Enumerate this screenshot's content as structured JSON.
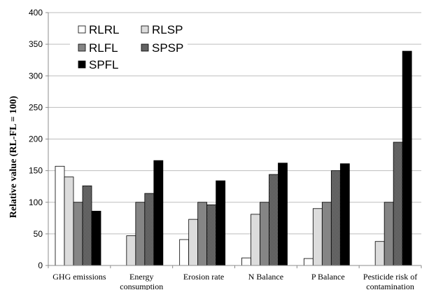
{
  "chart_data": {
    "type": "bar",
    "title": "",
    "xlabel": "",
    "ylabel": "Relative value (RL-FL = 100)",
    "ylim": [
      0,
      400
    ],
    "yticks": [
      0,
      50,
      100,
      150,
      200,
      250,
      300,
      350,
      400
    ],
    "ytick_labels": [
      "0",
      "50",
      "100",
      "150",
      "200",
      "250",
      "300",
      "350",
      "400"
    ],
    "grid": true,
    "legend_position": "top-left",
    "categories": [
      [
        "GHG emissions"
      ],
      [
        "Energy",
        "consumption"
      ],
      [
        "Erosion rate"
      ],
      [
        "N Balance"
      ],
      [
        "P Balance"
      ],
      [
        "Pesticide risk of",
        "contamination"
      ]
    ],
    "series": [
      {
        "name": "RLRL",
        "values": [
          157,
          null,
          41,
          12,
          11,
          null
        ],
        "color": "#ffffff",
        "pattern": "none"
      },
      {
        "name": "RLSP",
        "values": [
          140,
          47,
          73,
          81,
          90,
          38
        ],
        "color": "#dcdcdc",
        "pattern": "none"
      },
      {
        "name": "RLFL",
        "values": [
          100,
          100,
          100,
          100,
          100,
          100
        ],
        "color": "#858585",
        "pattern": "none"
      },
      {
        "name": "SPSP",
        "values": [
          126,
          114,
          96,
          144,
          150,
          195
        ],
        "color": "#505050",
        "pattern": "checker"
      },
      {
        "name": "SPFL",
        "values": [
          86,
          166,
          134,
          162,
          161,
          339
        ],
        "color": "#000000",
        "pattern": "none"
      }
    ]
  }
}
